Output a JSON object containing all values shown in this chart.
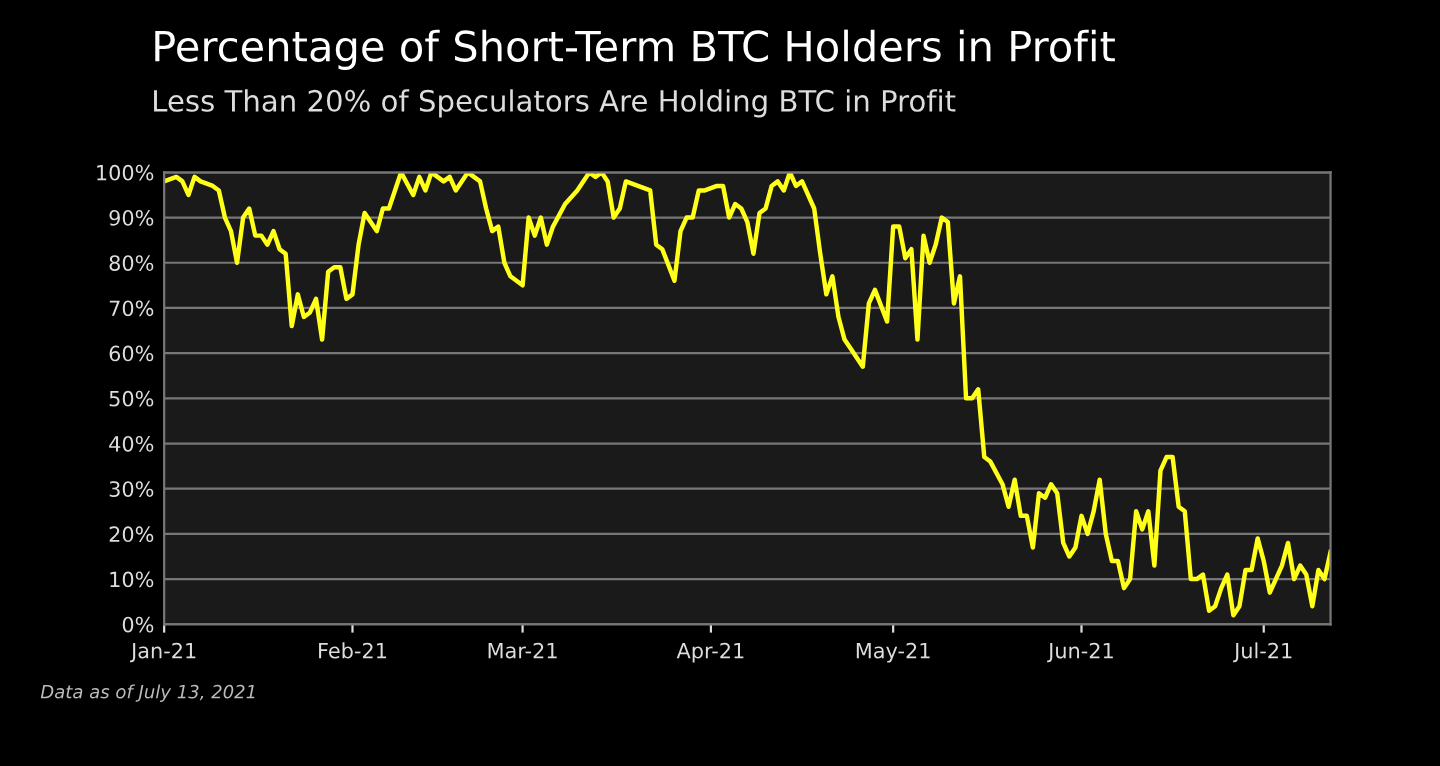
{
  "chart_data": {
    "type": "line",
    "title": "Percentage of Short-Term BTC Holders in Profit",
    "subtitle": "Less Than 20% of Speculators Are Holding BTC in Profit",
    "annotations": [
      "Data as of July 13, 2021"
    ],
    "x": [
      "2021-01-01",
      "2021-01-03",
      "2021-01-04",
      "2021-01-05",
      "2021-01-06",
      "2021-01-07",
      "2021-01-09",
      "2021-01-10",
      "2021-01-11",
      "2021-01-12",
      "2021-01-13",
      "2021-01-14",
      "2021-01-15",
      "2021-01-16",
      "2021-01-17",
      "2021-01-18",
      "2021-01-19",
      "2021-01-20",
      "2021-01-21",
      "2021-01-22",
      "2021-01-23",
      "2021-01-24",
      "2021-01-25",
      "2021-01-26",
      "2021-01-27",
      "2021-01-28",
      "2021-01-29",
      "2021-01-30",
      "2021-01-31",
      "2021-02-01",
      "2021-02-02",
      "2021-02-03",
      "2021-02-05",
      "2021-02-06",
      "2021-02-07",
      "2021-02-09",
      "2021-02-11",
      "2021-02-12",
      "2021-02-13",
      "2021-02-14",
      "2021-02-16",
      "2021-02-17",
      "2021-02-18",
      "2021-02-20",
      "2021-02-22",
      "2021-02-23",
      "2021-02-24",
      "2021-02-25",
      "2021-02-26",
      "2021-02-27",
      "2021-02-28",
      "2021-03-01",
      "2021-03-02",
      "2021-03-03",
      "2021-03-04",
      "2021-03-05",
      "2021-03-06",
      "2021-03-08",
      "2021-03-10",
      "2021-03-12",
      "2021-03-13",
      "2021-03-14",
      "2021-03-15",
      "2021-03-16",
      "2021-03-17",
      "2021-03-18",
      "2021-03-20",
      "2021-03-22",
      "2021-03-23",
      "2021-03-24",
      "2021-03-26",
      "2021-03-27",
      "2021-03-28",
      "2021-03-29",
      "2021-03-30",
      "2021-03-31",
      "2021-04-02",
      "2021-04-03",
      "2021-04-04",
      "2021-04-05",
      "2021-04-06",
      "2021-04-07",
      "2021-04-08",
      "2021-04-09",
      "2021-04-10",
      "2021-04-11",
      "2021-04-12",
      "2021-04-13",
      "2021-04-14",
      "2021-04-15",
      "2021-04-16",
      "2021-04-18",
      "2021-04-19",
      "2021-04-20",
      "2021-04-21",
      "2021-04-22",
      "2021-04-23",
      "2021-04-24",
      "2021-04-26",
      "2021-04-27",
      "2021-04-28",
      "2021-04-30",
      "2021-05-01",
      "2021-05-02",
      "2021-05-03",
      "2021-05-04",
      "2021-05-05",
      "2021-05-06",
      "2021-05-07",
      "2021-05-08",
      "2021-05-09",
      "2021-05-10",
      "2021-05-11",
      "2021-05-12",
      "2021-05-13",
      "2021-05-14",
      "2021-05-15",
      "2021-05-16",
      "2021-05-17",
      "2021-05-19",
      "2021-05-20",
      "2021-05-21",
      "2021-05-22",
      "2021-05-23",
      "2021-05-24",
      "2021-05-25",
      "2021-05-26",
      "2021-05-27",
      "2021-05-28",
      "2021-05-29",
      "2021-05-30",
      "2021-05-31",
      "2021-06-01",
      "2021-06-02",
      "2021-06-03",
      "2021-06-04",
      "2021-06-05",
      "2021-06-06",
      "2021-06-07",
      "2021-06-08",
      "2021-06-09",
      "2021-06-10",
      "2021-06-11",
      "2021-06-12",
      "2021-06-13",
      "2021-06-14",
      "2021-06-15",
      "2021-06-16",
      "2021-06-17",
      "2021-06-18",
      "2021-06-19",
      "2021-06-20",
      "2021-06-21",
      "2021-06-22",
      "2021-06-23",
      "2021-06-24",
      "2021-06-25",
      "2021-06-26",
      "2021-06-27",
      "2021-06-28",
      "2021-06-29",
      "2021-06-30",
      "2021-07-01",
      "2021-07-02",
      "2021-07-04",
      "2021-07-05",
      "2021-07-06",
      "2021-07-07",
      "2021-07-08",
      "2021-07-09",
      "2021-07-10",
      "2021-07-11",
      "2021-07-12"
    ],
    "series": [
      {
        "color": "#ffff1a",
        "values": [
          98,
          99,
          98,
          95,
          99,
          98,
          97,
          96,
          90,
          87,
          80,
          90,
          92,
          86,
          86,
          84,
          87,
          83,
          82,
          66,
          73,
          68,
          69,
          72,
          63,
          78,
          79,
          79,
          72,
          73,
          84,
          91,
          87,
          92,
          92,
          100,
          95,
          99,
          96,
          100,
          98,
          99,
          96,
          100,
          98,
          92,
          87,
          88,
          80,
          77,
          76,
          75,
          90,
          86,
          90,
          84,
          88,
          93,
          96,
          100,
          99,
          100,
          98,
          90,
          92,
          98,
          97,
          96,
          84,
          83,
          76,
          87,
          90,
          90,
          96,
          96,
          97,
          97,
          90,
          93,
          92,
          89,
          82,
          91,
          92,
          97,
          98,
          96,
          100,
          97,
          98,
          92,
          82,
          73,
          77,
          68,
          63,
          61,
          57,
          71,
          74,
          67,
          88,
          88,
          81,
          83,
          63,
          86,
          80,
          84,
          90,
          89,
          71,
          77,
          50,
          50,
          52,
          37,
          36,
          31,
          26,
          32,
          24,
          24,
          17,
          29,
          28,
          31,
          29,
          18,
          15,
          17,
          24,
          20,
          25,
          32,
          20,
          14,
          14,
          8,
          10,
          25,
          21,
          25,
          13,
          34,
          37,
          37,
          26,
          25,
          10,
          10,
          11,
          3,
          4,
          8,
          11,
          2,
          4,
          12,
          12,
          19,
          14,
          7,
          13,
          18,
          10,
          13,
          11,
          4,
          12,
          10,
          16
        ]
      }
    ],
    "xlim": [
      "2021-01-01",
      "2021-07-12"
    ],
    "xticks": [
      {
        "value": "2021-01-01",
        "label": "Jan-21"
      },
      {
        "value": "2021-02-01",
        "label": "Feb-21"
      },
      {
        "value": "2021-03-01",
        "label": "Mar-21"
      },
      {
        "value": "2021-04-01",
        "label": "Apr-21"
      },
      {
        "value": "2021-05-01",
        "label": "May-21"
      },
      {
        "value": "2021-06-01",
        "label": "Jun-21"
      },
      {
        "value": "2021-07-01",
        "label": "Jul-21"
      }
    ],
    "ylim": [
      0,
      100
    ],
    "yticks": [
      {
        "value": 0,
        "label": "0%"
      },
      {
        "value": 10,
        "label": "10%"
      },
      {
        "value": 20,
        "label": "20%"
      },
      {
        "value": 30,
        "label": "30%"
      },
      {
        "value": 40,
        "label": "40%"
      },
      {
        "value": 50,
        "label": "50%"
      },
      {
        "value": 60,
        "label": "60%"
      },
      {
        "value": 70,
        "label": "70%"
      },
      {
        "value": 80,
        "label": "80%"
      },
      {
        "value": 90,
        "label": "90%"
      },
      {
        "value": 100,
        "label": "100%"
      }
    ],
    "grid": "y",
    "legend": false
  }
}
